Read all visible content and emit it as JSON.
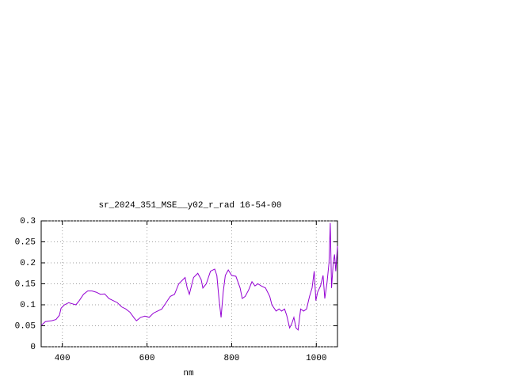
{
  "chart_data": {
    "type": "line",
    "title": "sr_2024_351_MSE__y02_r_rad 16-54-00",
    "xlabel": "nm",
    "x": [
      350,
      360,
      375,
      385,
      393,
      397,
      405,
      415,
      425,
      432,
      440,
      450,
      460,
      470,
      480,
      490,
      500,
      510,
      520,
      530,
      540,
      550,
      560,
      570,
      575,
      585,
      595,
      605,
      615,
      625,
      635,
      645,
      655,
      665,
      675,
      690,
      695,
      700,
      710,
      720,
      728,
      732,
      740,
      750,
      760,
      765,
      770,
      775,
      780,
      785,
      792,
      800,
      810,
      820,
      825,
      832,
      840,
      848,
      855,
      862,
      870,
      880,
      890,
      895,
      905,
      912,
      918,
      925,
      930,
      937,
      942,
      947,
      952,
      957,
      963,
      970,
      977,
      984,
      990,
      995,
      999,
      1003,
      1010,
      1016,
      1020,
      1025,
      1030,
      1033,
      1036,
      1040,
      1043,
      1046,
      1050
    ],
    "series": [
      {
        "color": "#9400d3",
        "values": [
          0.051,
          0.06,
          0.062,
          0.065,
          0.075,
          0.092,
          0.1,
          0.105,
          0.102,
          0.1,
          0.11,
          0.125,
          0.133,
          0.133,
          0.13,
          0.125,
          0.126,
          0.115,
          0.11,
          0.105,
          0.095,
          0.09,
          0.082,
          0.068,
          0.062,
          0.07,
          0.073,
          0.07,
          0.08,
          0.085,
          0.09,
          0.105,
          0.12,
          0.125,
          0.15,
          0.165,
          0.14,
          0.125,
          0.165,
          0.175,
          0.16,
          0.14,
          0.15,
          0.18,
          0.185,
          0.17,
          0.115,
          0.07,
          0.13,
          0.17,
          0.183,
          0.17,
          0.168,
          0.14,
          0.115,
          0.12,
          0.135,
          0.155,
          0.145,
          0.15,
          0.145,
          0.14,
          0.12,
          0.1,
          0.085,
          0.09,
          0.085,
          0.09,
          0.075,
          0.045,
          0.055,
          0.07,
          0.045,
          0.04,
          0.09,
          0.085,
          0.09,
          0.12,
          0.14,
          0.18,
          0.11,
          0.13,
          0.145,
          0.17,
          0.115,
          0.15,
          0.2,
          0.295,
          0.14,
          0.2,
          0.22,
          0.18,
          0.24
        ]
      }
    ],
    "xlim": [
      350,
      1050
    ],
    "ylim": [
      0,
      0.3
    ],
    "xticks": [
      400,
      600,
      800,
      1000
    ],
    "yticks": [
      0,
      0.05,
      0.1,
      0.15,
      0.2,
      0.25,
      0.3
    ],
    "grid": true
  }
}
